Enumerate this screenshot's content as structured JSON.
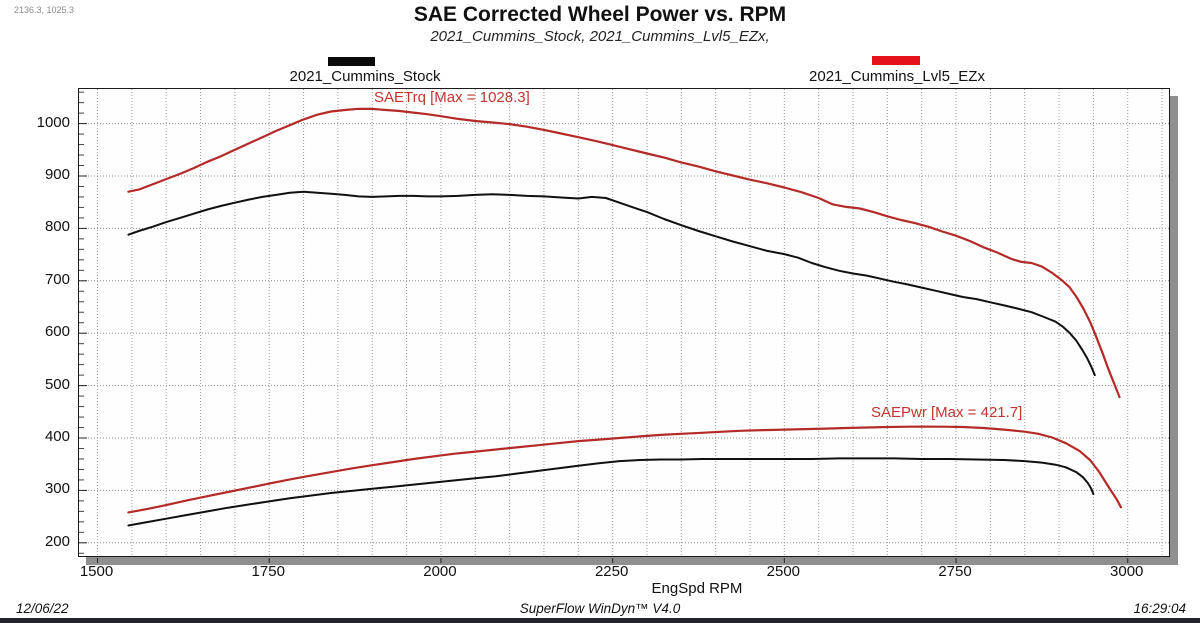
{
  "header": {
    "coord_readout": "2136.3, 1025.3",
    "title": "SAE Corrected Wheel Power vs. RPM",
    "subtitle": "2021_Cummins_Stock, 2021_Cummins_Lvl5_EZx,"
  },
  "legend": {
    "stock": {
      "label": "2021_Cummins_Stock",
      "color": "#0a0a0a"
    },
    "lvl5": {
      "label": "2021_Cummins_Lvl5_EZx",
      "color": "#e6121a"
    }
  },
  "annotations": {
    "torque_max": "SAETrq [Max = 1028.3]",
    "power_max": "SAEPwr [Max = 421.7]"
  },
  "axes": {
    "x_label": "EngSpd RPM",
    "x_ticks": [
      1500,
      1750,
      2000,
      2250,
      2500,
      2750,
      3000
    ],
    "y_ticks": [
      200,
      300,
      400,
      500,
      600,
      700,
      800,
      900,
      1000
    ]
  },
  "footer": {
    "date": "12/06/22",
    "app": "SuperFlow WinDyn™ V4.0",
    "time": "16:29:04"
  },
  "chart_data": {
    "type": "line",
    "title": "SAE Corrected Wheel Power vs. RPM",
    "subtitle": "2021_Cummins_Stock, 2021_Cummins_Lvl5_EZx,",
    "xlabel": "EngSpd RPM",
    "ylabel": "",
    "xlim": [
      1473,
      3063
    ],
    "ylim": [
      171,
      1066
    ],
    "x_ticks": [
      1500,
      1750,
      2000,
      2250,
      2500,
      2750,
      3000
    ],
    "y_ticks": [
      200,
      300,
      400,
      500,
      600,
      700,
      800,
      900,
      1000
    ],
    "x_grid_step": 50,
    "y_minor_tick_step": 20,
    "grid": true,
    "legend_position": "top",
    "series": [
      {
        "id": "lvl5_torque",
        "name": "2021_Cummins_Lvl5_EZx SAETrq",
        "max": 1028.3,
        "color": "#b42a28",
        "width": 2.2,
        "points": [
          [
            1545,
            870
          ],
          [
            1560,
            874
          ],
          [
            1580,
            884
          ],
          [
            1600,
            894
          ],
          [
            1620,
            904
          ],
          [
            1640,
            915
          ],
          [
            1660,
            927
          ],
          [
            1680,
            938
          ],
          [
            1700,
            950
          ],
          [
            1720,
            962
          ],
          [
            1740,
            974
          ],
          [
            1760,
            986
          ],
          [
            1780,
            997
          ],
          [
            1800,
            1008
          ],
          [
            1820,
            1017
          ],
          [
            1840,
            1023
          ],
          [
            1860,
            1026
          ],
          [
            1880,
            1028.3
          ],
          [
            1900,
            1028
          ],
          [
            1920,
            1026
          ],
          [
            1940,
            1024
          ],
          [
            1960,
            1021
          ],
          [
            1980,
            1018
          ],
          [
            2000,
            1014
          ],
          [
            2025,
            1009
          ],
          [
            2050,
            1005
          ],
          [
            2075,
            1002
          ],
          [
            2100,
            999
          ],
          [
            2125,
            994
          ],
          [
            2150,
            988
          ],
          [
            2175,
            981
          ],
          [
            2200,
            974
          ],
          [
            2225,
            967
          ],
          [
            2250,
            959
          ],
          [
            2275,
            951
          ],
          [
            2300,
            943
          ],
          [
            2325,
            935
          ],
          [
            2350,
            926
          ],
          [
            2375,
            918
          ],
          [
            2400,
            909
          ],
          [
            2425,
            901
          ],
          [
            2450,
            893
          ],
          [
            2475,
            886
          ],
          [
            2500,
            878
          ],
          [
            2525,
            869
          ],
          [
            2550,
            858
          ],
          [
            2570,
            846
          ],
          [
            2590,
            841
          ],
          [
            2610,
            838
          ],
          [
            2630,
            831
          ],
          [
            2650,
            823
          ],
          [
            2670,
            816
          ],
          [
            2690,
            810
          ],
          [
            2710,
            803
          ],
          [
            2730,
            794
          ],
          [
            2750,
            786
          ],
          [
            2770,
            776
          ],
          [
            2790,
            764
          ],
          [
            2810,
            754
          ],
          [
            2830,
            742
          ],
          [
            2845,
            736
          ],
          [
            2860,
            734
          ],
          [
            2875,
            727
          ],
          [
            2890,
            715
          ],
          [
            2905,
            700
          ],
          [
            2915,
            688
          ],
          [
            2925,
            670
          ],
          [
            2935,
            648
          ],
          [
            2945,
            622
          ],
          [
            2952,
            600
          ],
          [
            2958,
            580
          ],
          [
            2964,
            560
          ],
          [
            2970,
            538
          ],
          [
            2976,
            518
          ],
          [
            2982,
            498
          ],
          [
            2988,
            478
          ]
        ]
      },
      {
        "id": "stock_torque",
        "name": "2021_Cummins_Stock SAETrq",
        "color": "#101010",
        "width": 2,
        "points": [
          [
            1545,
            788
          ],
          [
            1560,
            795
          ],
          [
            1580,
            803
          ],
          [
            1600,
            812
          ],
          [
            1620,
            820
          ],
          [
            1640,
            828
          ],
          [
            1660,
            836
          ],
          [
            1680,
            843
          ],
          [
            1700,
            849
          ],
          [
            1720,
            855
          ],
          [
            1740,
            860
          ],
          [
            1760,
            864
          ],
          [
            1780,
            868
          ],
          [
            1800,
            870
          ],
          [
            1820,
            868
          ],
          [
            1840,
            866
          ],
          [
            1860,
            864
          ],
          [
            1880,
            861
          ],
          [
            1900,
            860
          ],
          [
            1920,
            861
          ],
          [
            1940,
            862
          ],
          [
            1960,
            862
          ],
          [
            1980,
            861
          ],
          [
            2000,
            861
          ],
          [
            2025,
            862
          ],
          [
            2050,
            864
          ],
          [
            2075,
            865
          ],
          [
            2100,
            864
          ],
          [
            2125,
            862
          ],
          [
            2150,
            861
          ],
          [
            2175,
            859
          ],
          [
            2200,
            857
          ],
          [
            2220,
            860
          ],
          [
            2240,
            858
          ],
          [
            2260,
            849
          ],
          [
            2280,
            840
          ],
          [
            2300,
            831
          ],
          [
            2325,
            818
          ],
          [
            2350,
            806
          ],
          [
            2375,
            795
          ],
          [
            2400,
            785
          ],
          [
            2425,
            775
          ],
          [
            2450,
            766
          ],
          [
            2475,
            757
          ],
          [
            2500,
            751
          ],
          [
            2520,
            744
          ],
          [
            2540,
            734
          ],
          [
            2560,
            726
          ],
          [
            2580,
            719
          ],
          [
            2600,
            714
          ],
          [
            2620,
            710
          ],
          [
            2640,
            704
          ],
          [
            2660,
            698
          ],
          [
            2680,
            693
          ],
          [
            2700,
            687
          ],
          [
            2720,
            681
          ],
          [
            2740,
            675
          ],
          [
            2760,
            669
          ],
          [
            2780,
            665
          ],
          [
            2800,
            659
          ],
          [
            2820,
            653
          ],
          [
            2840,
            647
          ],
          [
            2860,
            640
          ],
          [
            2880,
            630
          ],
          [
            2895,
            622
          ],
          [
            2905,
            613
          ],
          [
            2915,
            601
          ],
          [
            2925,
            586
          ],
          [
            2933,
            570
          ],
          [
            2941,
            552
          ],
          [
            2947,
            536
          ],
          [
            2952,
            520
          ]
        ]
      },
      {
        "id": "lvl5_power",
        "name": "2021_Cummins_Lvl5_EZx SAEPwr",
        "max": 421.7,
        "color": "#b42a28",
        "width": 2.2,
        "points": [
          [
            1545,
            258
          ],
          [
            1570,
            264
          ],
          [
            1600,
            272
          ],
          [
            1630,
            281
          ],
          [
            1660,
            289
          ],
          [
            1690,
            297
          ],
          [
            1720,
            305
          ],
          [
            1750,
            313
          ],
          [
            1780,
            321
          ],
          [
            1810,
            328
          ],
          [
            1840,
            335
          ],
          [
            1870,
            342
          ],
          [
            1900,
            348
          ],
          [
            1930,
            354
          ],
          [
            1960,
            360
          ],
          [
            1990,
            365
          ],
          [
            2020,
            370
          ],
          [
            2050,
            374
          ],
          [
            2080,
            378
          ],
          [
            2110,
            382
          ],
          [
            2140,
            386
          ],
          [
            2170,
            390
          ],
          [
            2200,
            394
          ],
          [
            2230,
            397
          ],
          [
            2260,
            400
          ],
          [
            2290,
            403
          ],
          [
            2320,
            406
          ],
          [
            2350,
            408
          ],
          [
            2380,
            410
          ],
          [
            2410,
            412
          ],
          [
            2440,
            414
          ],
          [
            2470,
            415
          ],
          [
            2500,
            416
          ],
          [
            2530,
            417
          ],
          [
            2560,
            418
          ],
          [
            2590,
            419
          ],
          [
            2620,
            420
          ],
          [
            2650,
            421
          ],
          [
            2680,
            421.5
          ],
          [
            2700,
            421.7
          ],
          [
            2730,
            421.5
          ],
          [
            2760,
            421
          ],
          [
            2790,
            419
          ],
          [
            2820,
            416
          ],
          [
            2850,
            412
          ],
          [
            2870,
            408
          ],
          [
            2890,
            401
          ],
          [
            2910,
            390
          ],
          [
            2930,
            375
          ],
          [
            2945,
            358
          ],
          [
            2958,
            336
          ],
          [
            2968,
            315
          ],
          [
            2977,
            297
          ],
          [
            2984,
            283
          ],
          [
            2990,
            268
          ]
        ]
      },
      {
        "id": "stock_power",
        "name": "2021_Cummins_Stock SAEPwr",
        "color": "#101010",
        "width": 2,
        "points": [
          [
            1545,
            233
          ],
          [
            1570,
            239
          ],
          [
            1600,
            246
          ],
          [
            1630,
            253
          ],
          [
            1660,
            260
          ],
          [
            1690,
            267
          ],
          [
            1720,
            273
          ],
          [
            1750,
            279
          ],
          [
            1780,
            285
          ],
          [
            1810,
            290
          ],
          [
            1840,
            295
          ],
          [
            1870,
            299
          ],
          [
            1900,
            303
          ],
          [
            1930,
            307
          ],
          [
            1960,
            311
          ],
          [
            1990,
            315
          ],
          [
            2020,
            319
          ],
          [
            2050,
            323
          ],
          [
            2080,
            327
          ],
          [
            2110,
            332
          ],
          [
            2140,
            337
          ],
          [
            2170,
            342
          ],
          [
            2200,
            347
          ],
          [
            2230,
            352
          ],
          [
            2260,
            356
          ],
          [
            2290,
            358
          ],
          [
            2320,
            359
          ],
          [
            2350,
            359
          ],
          [
            2380,
            360
          ],
          [
            2420,
            360
          ],
          [
            2460,
            360
          ],
          [
            2500,
            360
          ],
          [
            2540,
            360
          ],
          [
            2580,
            361
          ],
          [
            2620,
            361
          ],
          [
            2660,
            361
          ],
          [
            2700,
            360
          ],
          [
            2740,
            360
          ],
          [
            2780,
            359
          ],
          [
            2820,
            358
          ],
          [
            2850,
            356
          ],
          [
            2875,
            353
          ],
          [
            2895,
            349
          ],
          [
            2910,
            344
          ],
          [
            2925,
            335
          ],
          [
            2935,
            325
          ],
          [
            2942,
            314
          ],
          [
            2947,
            303
          ],
          [
            2950,
            293
          ]
        ]
      }
    ]
  }
}
